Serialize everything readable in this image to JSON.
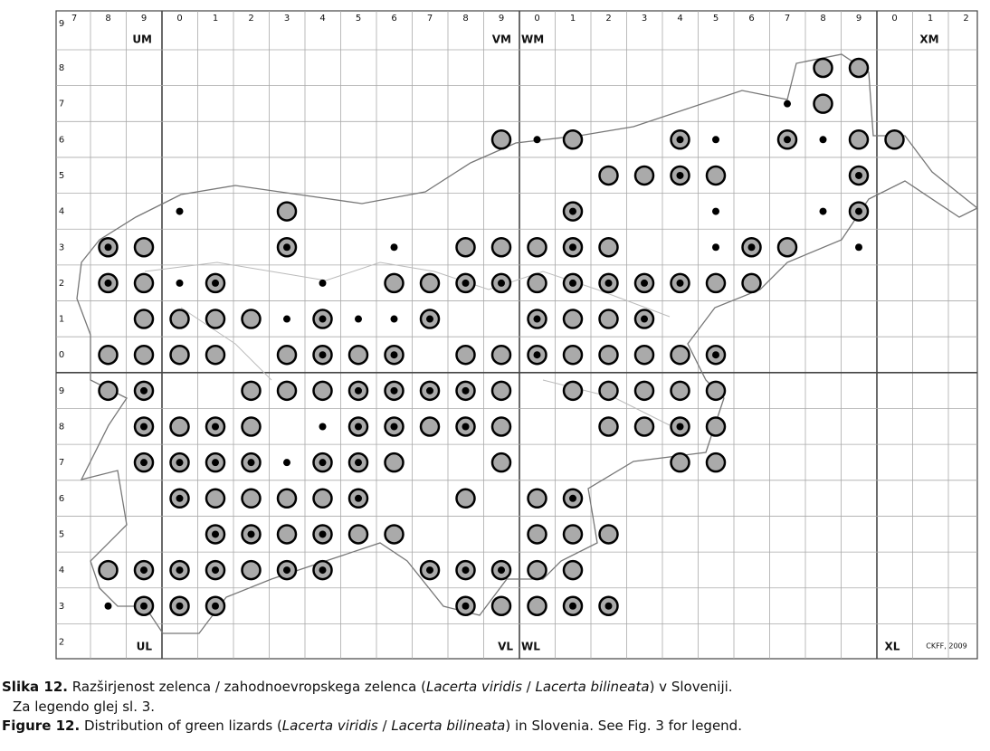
{
  "map": {
    "column_labels": [
      "7",
      "8",
      "9",
      "0",
      "1",
      "2",
      "3",
      "4",
      "5",
      "6",
      "7",
      "8",
      "9",
      "0",
      "1",
      "2",
      "3",
      "4",
      "5",
      "6",
      "7",
      "8",
      "9",
      "0",
      "1",
      "2"
    ],
    "row_labels": [
      "9",
      "8",
      "7",
      "6",
      "5",
      "4",
      "3",
      "2",
      "1",
      "0",
      "9",
      "8",
      "7",
      "6",
      "5",
      "4",
      "3",
      "2"
    ],
    "zone_labels": {
      "um": "UM",
      "vm": "VM",
      "wm": "WM",
      "xm": "XM",
      "ul": "UL",
      "vl": "VL",
      "wl": "WL",
      "xl": "XL"
    },
    "credit": "CKFF, 2009"
  },
  "captions": [
    {
      "segments": [
        {
          "text": "Slika 12.",
          "style": "bold"
        },
        {
          "text": " Razširjenost zelenca / zahodnoevropskega zelenca (",
          "style": "normal"
        },
        {
          "text": "Lacerta viridis",
          "style": "italic"
        },
        {
          "text": " / ",
          "style": "normal"
        },
        {
          "text": "Lacerta bilineata",
          "style": "italic"
        },
        {
          "text": ") v Sloveniji.",
          "style": "normal"
        }
      ]
    },
    {
      "segments": [
        {
          "text": "Za legendo glej sl. 3.",
          "style": "normal"
        }
      ]
    },
    {
      "segments": [
        {
          "text": "Figure 12.",
          "style": "bold"
        },
        {
          "text": " Distribution of green lizards (",
          "style": "normal"
        },
        {
          "text": "Lacerta viridis",
          "style": "italic"
        },
        {
          "text": " / ",
          "style": "normal"
        },
        {
          "text": "Lacerta bilineata",
          "style": "italic"
        },
        {
          "text": ") in Slovenia. See Fig. 3 for legend.",
          "style": "normal"
        }
      ]
    }
  ]
}
